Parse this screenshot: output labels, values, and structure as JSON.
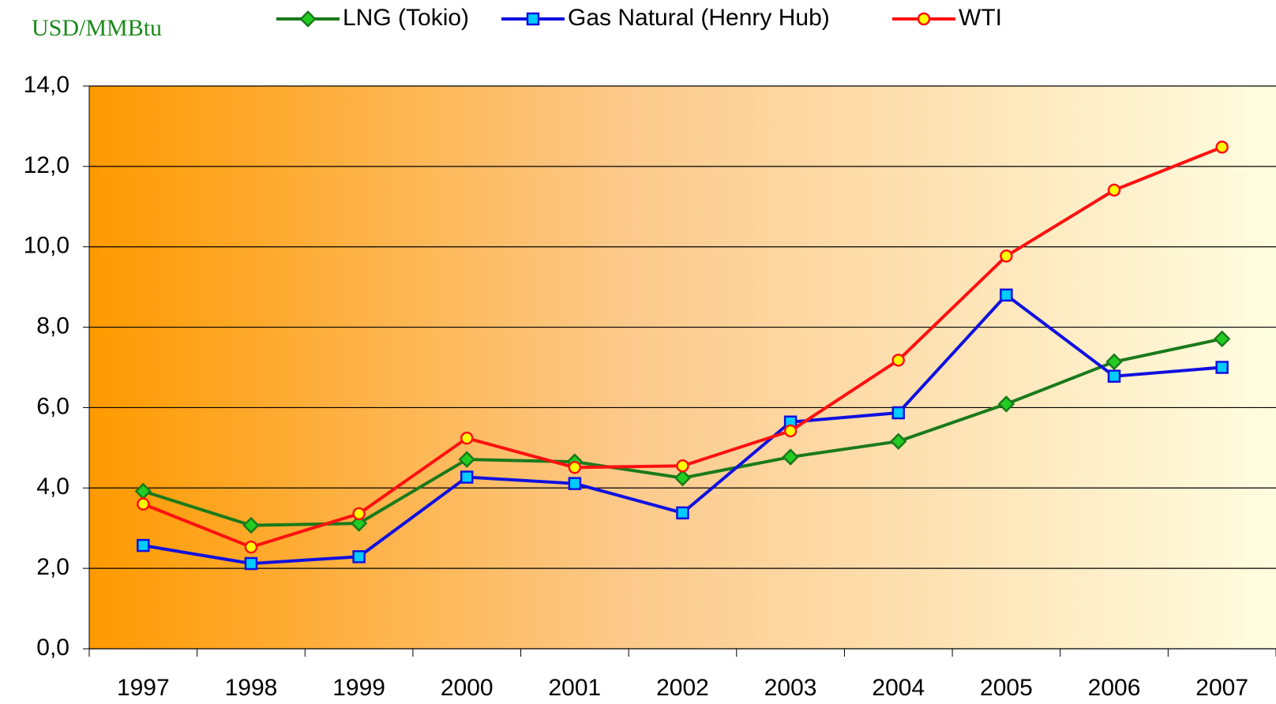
{
  "chart_data": {
    "type": "line",
    "y_label": "USD/MMBtu",
    "categories": [
      "1997",
      "1998",
      "1999",
      "2000",
      "2001",
      "2002",
      "2003",
      "2004",
      "2005",
      "2006",
      "2007"
    ],
    "series": [
      {
        "name": "LNG (Tokio)",
        "color": "#1a7a1a",
        "marker_color": "#22cc22",
        "marker": "diamond",
        "values": [
          3.92,
          3.07,
          3.12,
          4.71,
          4.65,
          4.25,
          4.77,
          5.16,
          6.09,
          7.14,
          7.71
        ]
      },
      {
        "name": "Gas Natural (Henry Hub)",
        "color": "#1010e0",
        "marker_color": "#00ccff",
        "marker": "square",
        "values": [
          2.57,
          2.12,
          2.29,
          4.27,
          4.11,
          3.38,
          5.64,
          5.87,
          8.8,
          6.78,
          7.0
        ]
      },
      {
        "name": "WTI",
        "color": "#ff1010",
        "marker_color": "#ffff00",
        "marker": "circle",
        "values": [
          3.6,
          2.53,
          3.36,
          5.24,
          4.51,
          4.55,
          5.42,
          7.18,
          9.77,
          11.41,
          12.48
        ]
      }
    ],
    "ylim": [
      0,
      14
    ],
    "yticks": [
      {
        "value": 0,
        "label": "0,0"
      },
      {
        "value": 2,
        "label": "2,0"
      },
      {
        "value": 4,
        "label": "4,0"
      },
      {
        "value": 6,
        "label": "6,0"
      },
      {
        "value": 8,
        "label": "8,0"
      },
      {
        "value": 10,
        "label": "10,0"
      },
      {
        "value": 12,
        "label": "12,0"
      },
      {
        "value": 14,
        "label": "14,0"
      }
    ],
    "grid": true
  }
}
